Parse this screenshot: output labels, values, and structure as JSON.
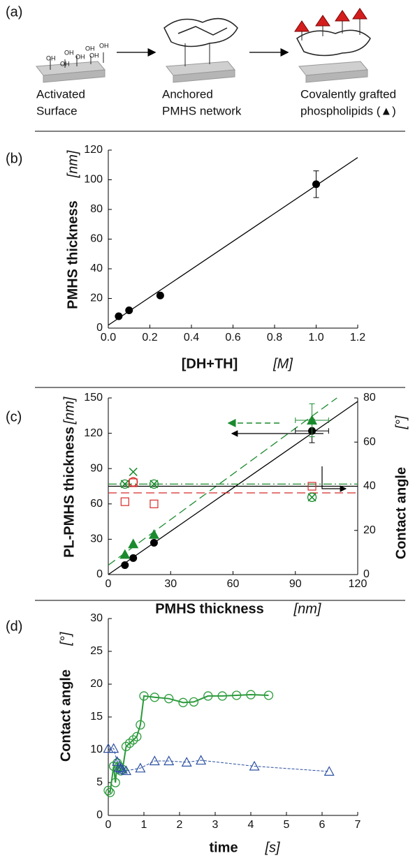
{
  "panel_a": {
    "label": "(a)",
    "oh_labels": [
      "OH",
      "OH",
      "OH",
      "OH",
      "OH",
      "OH",
      "OH"
    ],
    "steps": [
      [
        "Activated",
        "Surface"
      ],
      [
        "Anchored",
        "PMHS network"
      ],
      [
        "Covalently grafted",
        "phospholipids (▲)"
      ]
    ]
  },
  "chart_data": [
    {
      "type": "scatter",
      "panel_label": "(b)",
      "xlabel": "[DH+TH]",
      "xlabel_unit": "[M]",
      "ylabel": "PMHS thickness",
      "ylabel_unit": "[nm]",
      "xlim": [
        0,
        1.2
      ],
      "xticks": [
        {
          "value": 0,
          "label": "0.0"
        },
        0.2,
        0.4,
        0.6,
        0.8,
        {
          "value": 1,
          "label": "1.0"
        },
        1.2
      ],
      "ylim": [
        0,
        120
      ],
      "yticks": [
        0,
        20,
        40,
        60,
        80,
        100,
        120
      ],
      "right_axis": false,
      "series": [
        {
          "color": "#000000",
          "marker": "circle",
          "x": [
            0.05,
            0.1,
            0.25,
            1.0
          ],
          "values": [
            8,
            12,
            22,
            97
          ],
          "errors": [
            null,
            null,
            null,
            9
          ]
        }
      ],
      "lines": [
        {
          "color": "#000000",
          "style": "solid",
          "x": [
            0,
            1.2
          ],
          "y": [
            2,
            115
          ]
        }
      ]
    },
    {
      "type": "scatter",
      "panel_label": "(c)",
      "xlabel": "PMHS thickness",
      "xlabel_unit": "[nm]",
      "ylabel": "PL-PMHS thickness",
      "ylabel_unit": "[nm]",
      "y2label": "Contact angle",
      "y2label_unit": "[°]",
      "xlim": [
        0,
        120
      ],
      "xticks": [
        0,
        30,
        60,
        90,
        120
      ],
      "ylim": [
        0,
        150
      ],
      "yticks": [
        0,
        30,
        60,
        90,
        120,
        150
      ],
      "y2lim": [
        0,
        80
      ],
      "y2ticks": [
        0,
        20,
        40,
        60,
        80
      ],
      "right_axis": true,
      "series": [
        {
          "color": "#000000",
          "marker": "circle",
          "x": [
            8,
            12,
            22,
            98
          ],
          "values": [
            8,
            14,
            27,
            122
          ],
          "errors": [
            null,
            null,
            null,
            10
          ],
          "x_errors": [
            null,
            null,
            null,
            8
          ]
        },
        {
          "color": "#1a8a2e",
          "marker": "triangle",
          "x": [
            8,
            12,
            22,
            98
          ],
          "values": [
            17,
            26,
            34,
            131
          ],
          "errors": [
            null,
            null,
            null,
            14
          ],
          "x_errors": [
            null,
            null,
            null,
            8
          ]
        },
        {
          "color": "#1a8a2e",
          "marker": "open-circle",
          "axis": "y2",
          "x": [
            8,
            22,
            98
          ],
          "values": [
            41,
            41,
            35
          ]
        },
        {
          "color": "#1a8a2e",
          "marker": "cross",
          "axis": "y2",
          "x": [
            8,
            12,
            22,
            98
          ],
          "values": [
            41,
            46.5,
            41,
            35
          ]
        },
        {
          "color": "#d62a2a",
          "marker": "open-square",
          "axis": "y2",
          "x": [
            8,
            12,
            22,
            98
          ],
          "values": [
            33,
            41.6,
            32,
            40
          ]
        },
        {
          "color": "#d62a2a",
          "marker": "open-circle",
          "axis": "y2",
          "x": [
            12
          ],
          "values": [
            42
          ]
        }
      ],
      "lines": [
        {
          "color": "#000000",
          "style": "solid",
          "x": [
            0,
            120
          ],
          "y": [
            0,
            147
          ]
        },
        {
          "color": "#1a8a2e",
          "style": "dashed",
          "x": [
            0,
            110
          ],
          "y": [
            8,
            150
          ]
        },
        {
          "color": "#1a8a2e",
          "style": "dashdot",
          "axis": "y2",
          "x": [
            0,
            120
          ],
          "y": [
            41,
            41
          ]
        },
        {
          "color": "#000000",
          "style": "solid",
          "axis": "y2",
          "x": [
            0,
            120
          ],
          "y": [
            40,
            40
          ]
        },
        {
          "color": "#d62a2a",
          "style": "dashed",
          "axis": "y2",
          "x": [
            0,
            120
          ],
          "y": [
            37,
            37
          ]
        }
      ]
    },
    {
      "type": "line",
      "panel_label": "(d)",
      "xlabel": "time",
      "xlabel_unit": "[s]",
      "ylabel": "Contact angle",
      "ylabel_unit": "[°]",
      "xlim": [
        0,
        7
      ],
      "xticks": [
        0,
        1,
        2,
        3,
        4,
        5,
        6,
        7
      ],
      "ylim": [
        0,
        30
      ],
      "yticks": [
        0,
        5,
        10,
        15,
        20,
        25,
        30
      ],
      "right_axis": false,
      "series": [
        {
          "color": "#2a9a3a",
          "marker": "open-circle",
          "line": "solid",
          "x": [
            0,
            0.05,
            0.15,
            0.2,
            0.25,
            0.3,
            0.35,
            0.4,
            0.5,
            0.6,
            0.7,
            0.8,
            0.9,
            1.0,
            1.3,
            1.7,
            2.1,
            2.4,
            2.8,
            3.2,
            3.6,
            4.0,
            4.5
          ],
          "values": [
            3.8,
            3.5,
            7.5,
            5,
            8,
            7.5,
            6.8,
            7,
            10.5,
            11,
            11.5,
            12,
            13.8,
            18.2,
            18,
            17.8,
            17.2,
            17.3,
            18.2,
            18.2,
            18.3,
            18.4,
            18.3
          ]
        },
        {
          "color": "#2b4fa0",
          "marker": "open-triangle",
          "line": "dashed",
          "x": [
            0,
            0.15,
            0.25,
            0.3,
            0.35,
            0.4,
            0.5,
            0.9,
            1.3,
            1.7,
            2.2,
            2.6,
            4.1,
            6.2
          ],
          "values": [
            10.2,
            10.2,
            8.2,
            7.3,
            7.2,
            7,
            6.8,
            7.2,
            8.3,
            8.3,
            8.1,
            8.4,
            7.5,
            6.7
          ]
        }
      ]
    }
  ]
}
